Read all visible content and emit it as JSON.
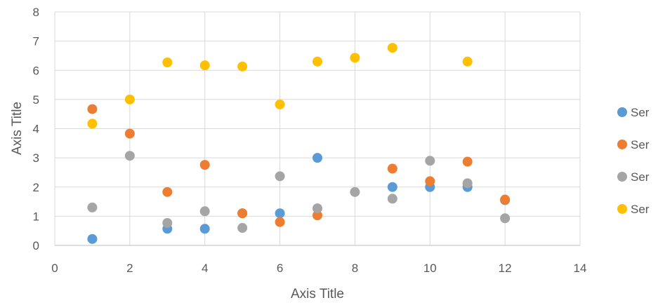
{
  "chart_data": {
    "type": "scatter",
    "xlabel": "Axis Title",
    "ylabel": "Axis Title",
    "xlim": [
      0,
      14
    ],
    "ylim": [
      0,
      8
    ],
    "x_ticks": [
      "0",
      "2",
      "4",
      "6",
      "8",
      "10",
      "12",
      "14"
    ],
    "y_ticks": [
      "0",
      "1",
      "2",
      "3",
      "4",
      "5",
      "6",
      "7",
      "8"
    ],
    "grid": true,
    "legend_position": "right",
    "series": [
      {
        "name": "Ser",
        "color": "#5B9BD5",
        "points": [
          [
            1,
            0.22
          ],
          [
            3,
            0.57
          ],
          [
            4,
            0.57
          ],
          [
            5,
            1.1
          ],
          [
            6,
            1.1
          ],
          [
            7,
            3.0
          ],
          [
            9,
            2.0
          ],
          [
            10,
            2.0
          ],
          [
            11,
            2.0
          ],
          [
            12,
            1.55
          ]
        ]
      },
      {
        "name": "Ser",
        "color": "#ED7D31",
        "points": [
          [
            1,
            4.67
          ],
          [
            2,
            3.83
          ],
          [
            3,
            1.83
          ],
          [
            4,
            2.76
          ],
          [
            5,
            1.1
          ],
          [
            6,
            0.8
          ],
          [
            7,
            1.03
          ],
          [
            9,
            2.63
          ],
          [
            10,
            2.2
          ],
          [
            11,
            2.87
          ],
          [
            12,
            1.57
          ]
        ]
      },
      {
        "name": "Ser",
        "color": "#A5A5A5",
        "points": [
          [
            1,
            1.3
          ],
          [
            2,
            3.07
          ],
          [
            3,
            0.77
          ],
          [
            4,
            1.17
          ],
          [
            5,
            0.6
          ],
          [
            6,
            2.37
          ],
          [
            7,
            1.27
          ],
          [
            8,
            1.83
          ],
          [
            9,
            1.6
          ],
          [
            10,
            2.9
          ],
          [
            11,
            2.13
          ],
          [
            12,
            0.93
          ]
        ]
      },
      {
        "name": "Ser",
        "color": "#FFC000",
        "points": [
          [
            1,
            4.17
          ],
          [
            2,
            5.0
          ],
          [
            3,
            6.27
          ],
          [
            4,
            6.17
          ],
          [
            5,
            6.13
          ],
          [
            6,
            4.83
          ],
          [
            7,
            6.3
          ],
          [
            8,
            6.43
          ],
          [
            9,
            6.77
          ],
          [
            11,
            6.3
          ]
        ]
      }
    ]
  }
}
